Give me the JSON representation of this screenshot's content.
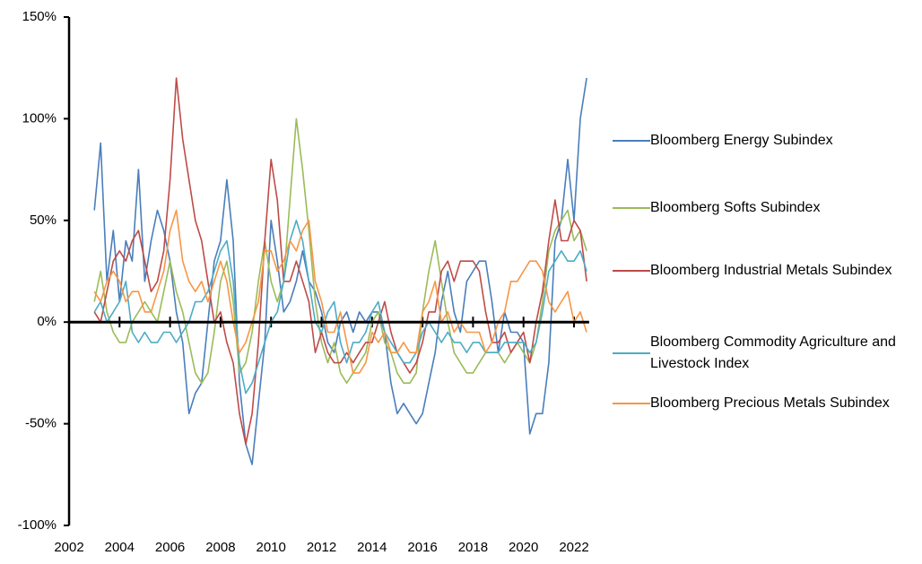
{
  "chart_data": {
    "type": "line",
    "x": [
      2003,
      2003.25,
      2003.5,
      2003.75,
      2004,
      2004.25,
      2004.5,
      2004.75,
      2005,
      2005.25,
      2005.5,
      2005.75,
      2006,
      2006.25,
      2006.5,
      2006.75,
      2007,
      2007.25,
      2007.5,
      2007.75,
      2008,
      2008.25,
      2008.5,
      2008.75,
      2009,
      2009.25,
      2009.5,
      2009.75,
      2010,
      2010.25,
      2010.5,
      2010.75,
      2011,
      2011.25,
      2011.5,
      2011.75,
      2012,
      2012.25,
      2012.5,
      2012.75,
      2013,
      2013.25,
      2013.5,
      2013.75,
      2014,
      2014.25,
      2014.5,
      2014.75,
      2015,
      2015.25,
      2015.5,
      2015.75,
      2016,
      2016.25,
      2016.5,
      2016.75,
      2017,
      2017.25,
      2017.5,
      2017.75,
      2018,
      2018.25,
      2018.5,
      2018.75,
      2019,
      2019.25,
      2019.5,
      2019.75,
      2020,
      2020.25,
      2020.5,
      2020.75,
      2021,
      2021.25,
      2021.5,
      2021.75,
      2022,
      2022.25,
      2022.5
    ],
    "series": [
      {
        "name": "Bloomberg Energy Subindex",
        "color": "#4a7ebb",
        "values": [
          55,
          88,
          20,
          45,
          10,
          40,
          30,
          75,
          20,
          40,
          55,
          45,
          30,
          5,
          -10,
          -45,
          -35,
          -30,
          0,
          30,
          40,
          70,
          40,
          -30,
          -60,
          -70,
          -40,
          -10,
          50,
          30,
          5,
          10,
          20,
          35,
          20,
          15,
          5,
          -10,
          -15,
          0,
          5,
          -5,
          5,
          0,
          5,
          5,
          -5,
          -30,
          -45,
          -40,
          -45,
          -50,
          -45,
          -30,
          -15,
          10,
          25,
          5,
          -5,
          20,
          25,
          30,
          30,
          10,
          -15,
          5,
          -5,
          -5,
          -10,
          -55,
          -45,
          -45,
          -20,
          40,
          50,
          80,
          50,
          100,
          120
        ]
      },
      {
        "name": "Bloomberg Softs Subindex",
        "color": "#9bbb59",
        "values": [
          10,
          25,
          5,
          -5,
          -10,
          -10,
          0,
          5,
          10,
          5,
          0,
          15,
          30,
          15,
          5,
          -10,
          -25,
          -30,
          -25,
          -5,
          20,
          30,
          10,
          -25,
          -20,
          -5,
          20,
          40,
          20,
          10,
          20,
          60,
          100,
          75,
          45,
          10,
          -10,
          -20,
          -10,
          -25,
          -30,
          -25,
          -20,
          -15,
          0,
          5,
          -10,
          -15,
          -25,
          -30,
          -30,
          -25,
          5,
          25,
          40,
          20,
          0,
          -15,
          -20,
          -25,
          -25,
          -20,
          -15,
          -15,
          -15,
          -20,
          -15,
          -10,
          -15,
          -20,
          -10,
          10,
          35,
          45,
          50,
          55,
          40,
          45,
          35
        ]
      },
      {
        "name": "Bloomberg Industrial Metals Subindex",
        "color": "#be4b48",
        "values": [
          5,
          0,
          15,
          30,
          35,
          30,
          40,
          45,
          30,
          15,
          20,
          35,
          70,
          120,
          90,
          70,
          50,
          40,
          20,
          0,
          5,
          -10,
          -20,
          -45,
          -60,
          -45,
          -10,
          40,
          80,
          60,
          20,
          20,
          30,
          20,
          10,
          -15,
          -5,
          -15,
          -20,
          -20,
          -15,
          -20,
          -15,
          -10,
          -10,
          0,
          10,
          -5,
          -15,
          -20,
          -25,
          -20,
          -10,
          5,
          5,
          25,
          30,
          20,
          30,
          30,
          30,
          25,
          5,
          -10,
          -10,
          -5,
          -15,
          -10,
          -5,
          -20,
          0,
          15,
          40,
          60,
          40,
          40,
          50,
          45,
          20
        ]
      },
      {
        "name": "Bloomberg Commodity Agriculture and Livestock Index",
        "color": "#4bacc6",
        "values": [
          5,
          10,
          0,
          5,
          10,
          20,
          -5,
          -10,
          -5,
          -10,
          -10,
          -5,
          -5,
          -10,
          -5,
          0,
          10,
          10,
          15,
          25,
          35,
          40,
          20,
          -20,
          -35,
          -30,
          -20,
          -10,
          0,
          5,
          20,
          40,
          50,
          40,
          20,
          0,
          -5,
          5,
          10,
          -10,
          -20,
          -10,
          -10,
          -5,
          5,
          10,
          -5,
          -10,
          -15,
          -20,
          -20,
          -15,
          -5,
          0,
          -5,
          -10,
          -5,
          -10,
          -10,
          -15,
          -10,
          -10,
          -15,
          -15,
          -15,
          -10,
          -10,
          -10,
          -10,
          -15,
          -10,
          5,
          25,
          30,
          35,
          30,
          30,
          35,
          25
        ]
      },
      {
        "name": "Bloomberg Precious Metals Subindex",
        "color": "#f79646",
        "values": [
          15,
          10,
          20,
          25,
          20,
          10,
          15,
          15,
          5,
          5,
          15,
          25,
          45,
          55,
          30,
          20,
          15,
          20,
          10,
          20,
          30,
          20,
          0,
          -15,
          -10,
          0,
          10,
          35,
          35,
          25,
          30,
          40,
          35,
          45,
          50,
          20,
          10,
          -5,
          -5,
          5,
          -10,
          -25,
          -25,
          -20,
          -5,
          -10,
          -5,
          -15,
          -15,
          -10,
          -15,
          -15,
          5,
          10,
          20,
          0,
          5,
          -5,
          0,
          -5,
          -5,
          -5,
          -15,
          -10,
          0,
          5,
          20,
          20,
          25,
          30,
          30,
          25,
          10,
          5,
          10,
          15,
          0,
          5,
          -5
        ]
      }
    ],
    "xlim": [
      2002,
      2022.6
    ],
    "xticks": [
      2002,
      2004,
      2006,
      2008,
      2010,
      2012,
      2014,
      2016,
      2018,
      2020,
      2022
    ],
    "ylim": [
      -100,
      150
    ],
    "yticks": [
      {
        "value": -100,
        "label": "-100%"
      },
      {
        "value": -50,
        "label": "-50%"
      },
      {
        "value": 0,
        "label": "0%"
      },
      {
        "value": 50,
        "label": "50%"
      },
      {
        "value": 100,
        "label": "100%"
      },
      {
        "value": 150,
        "label": "150%"
      }
    ],
    "legend": "right"
  }
}
